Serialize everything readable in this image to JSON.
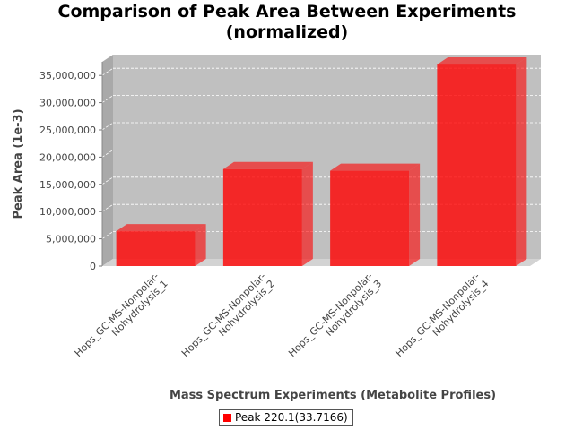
{
  "chart_data": {
    "type": "bar",
    "title_line1": "Comparison of Peak Area Between Experiments",
    "title_line2": "(normalized)",
    "xlabel": "Mass Spectrum Experiments (Metabolite Profiles)",
    "ylabel": "Peak Area (1e-3)",
    "categories": [
      [
        "Hops_GC-MS-Nonpolar-",
        "Nohydrolysis_1"
      ],
      [
        "Hops_GC-MS-Nonpolar-",
        "Nohydrolysis_2"
      ],
      [
        "Hops_GC-MS-Nonpolar-",
        "Nohydrolysis_3"
      ],
      [
        "Hops_GC-MS-Nonpolar-",
        "Nohydrolysis_4"
      ]
    ],
    "series": [
      {
        "name": "Peak 220.1(33.7166)",
        "values": [
          6400000,
          17800000,
          17500000,
          37000000
        ]
      }
    ],
    "ylim": [
      0,
      37500000
    ],
    "yticks": [
      0,
      5000000,
      10000000,
      15000000,
      20000000,
      25000000,
      30000000,
      35000000
    ],
    "ytick_labels": [
      "0",
      "5,000,000",
      "10,000,000",
      "15,000,000",
      "20,000,000",
      "25,000,000",
      "30,000,000",
      "35,000,000"
    ],
    "grid": true,
    "legend_position": "bottom",
    "bar_color": "#ff0000",
    "plot_background": "#c0c0c0"
  }
}
